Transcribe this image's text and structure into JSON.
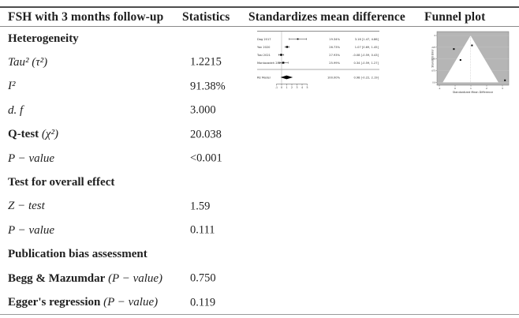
{
  "table": {
    "headers": [
      "FSH with 3 months follow-up",
      "Statistics",
      "Standardizes mean difference",
      "Funnel plot"
    ],
    "rows": [
      {
        "bold": "Heterogeneity",
        "italic": "",
        "value": ""
      },
      {
        "bold": "",
        "italic": "Tau² (τ²)",
        "value": "1.2215"
      },
      {
        "bold": "",
        "italic": "I²",
        "value": "91.38%"
      },
      {
        "bold": "",
        "italic": "d. f",
        "value": "3.000"
      },
      {
        "bold": "Q-test",
        "italic": " (χ²)",
        "value": "20.038"
      },
      {
        "bold": "",
        "italic": "P − value",
        "value": "<0.001"
      },
      {
        "bold": "Test for overall effect",
        "italic": "",
        "value": ""
      },
      {
        "bold": "",
        "italic": "Z − test",
        "value": "1.59"
      },
      {
        "bold": "",
        "italic": "P − value",
        "value": "0.111"
      },
      {
        "bold": "Publication bias assessment",
        "italic": "",
        "value": ""
      },
      {
        "bold": "Begg & Mazumdar",
        "italic": " (P − value)",
        "value": "0.750"
      },
      {
        "bold": "Egger's regression",
        "italic": " (P − value)",
        "value": "0.119"
      }
    ]
  },
  "chart_data": [
    {
      "type": "scatter",
      "subtype": "forest-plot",
      "studies": [
        {
          "label": "Dag 2017",
          "weight": "19.34%",
          "estimate": 3.16,
          "ci_low": 1.47,
          "ci_high": 4.86,
          "text": "3.16 [1.47, 4.86]"
        },
        {
          "label": "Yan 2020",
          "weight": "26.73%",
          "estimate": 1.07,
          "ci_low": 0.69,
          "ci_high": 1.45,
          "text": "1.07 [0.69, 1.45]"
        },
        {
          "label": "Tosi 2021",
          "weight": "27.93%",
          "estimate": -0.08,
          "ci_low": -0.59,
          "ci_high": 0.43,
          "text": "-0.08 [-0.59, 0.43]"
        },
        {
          "label": "Montazadeh 2021",
          "weight": "25.99%",
          "estimate": 0.34,
          "ci_low": -0.59,
          "ci_high": 1.27,
          "text": "0.34 [-0.59, 1.27]"
        }
      ],
      "model": {
        "label": "RE Model",
        "weight": "100.00%",
        "estimate": 0.98,
        "ci_low": -0.22,
        "ci_high": 2.19,
        "text": "0.98 [-0.22, 2.19]"
      },
      "x_ticks": [
        -1,
        0,
        1,
        2,
        3,
        4,
        5
      ]
    },
    {
      "type": "scatter",
      "subtype": "funnel-plot",
      "xlabel": "Standardized Mean Difference",
      "ylabel": "Standard Error",
      "x_ticks": [
        -1,
        0,
        1,
        2,
        3
      ],
      "y_ticks": [
        0,
        0.225,
        0.45,
        0.675,
        0.9
      ],
      "center": 0.98,
      "max_se": 0.9,
      "points": [
        {
          "x": -0.08,
          "se": 0.26
        },
        {
          "x": 1.07,
          "se": 0.19
        },
        {
          "x": 0.34,
          "se": 0.47
        },
        {
          "x": 3.16,
          "se": 0.86
        }
      ]
    }
  ],
  "colors": {
    "text": "#1f1f1f",
    "rule_dark": "#4d4d4d",
    "rule_light": "#8a8a8a",
    "plot_line": "#8c8c8c",
    "funnel_bg": "#b5b5b5",
    "point": "#000000"
  }
}
